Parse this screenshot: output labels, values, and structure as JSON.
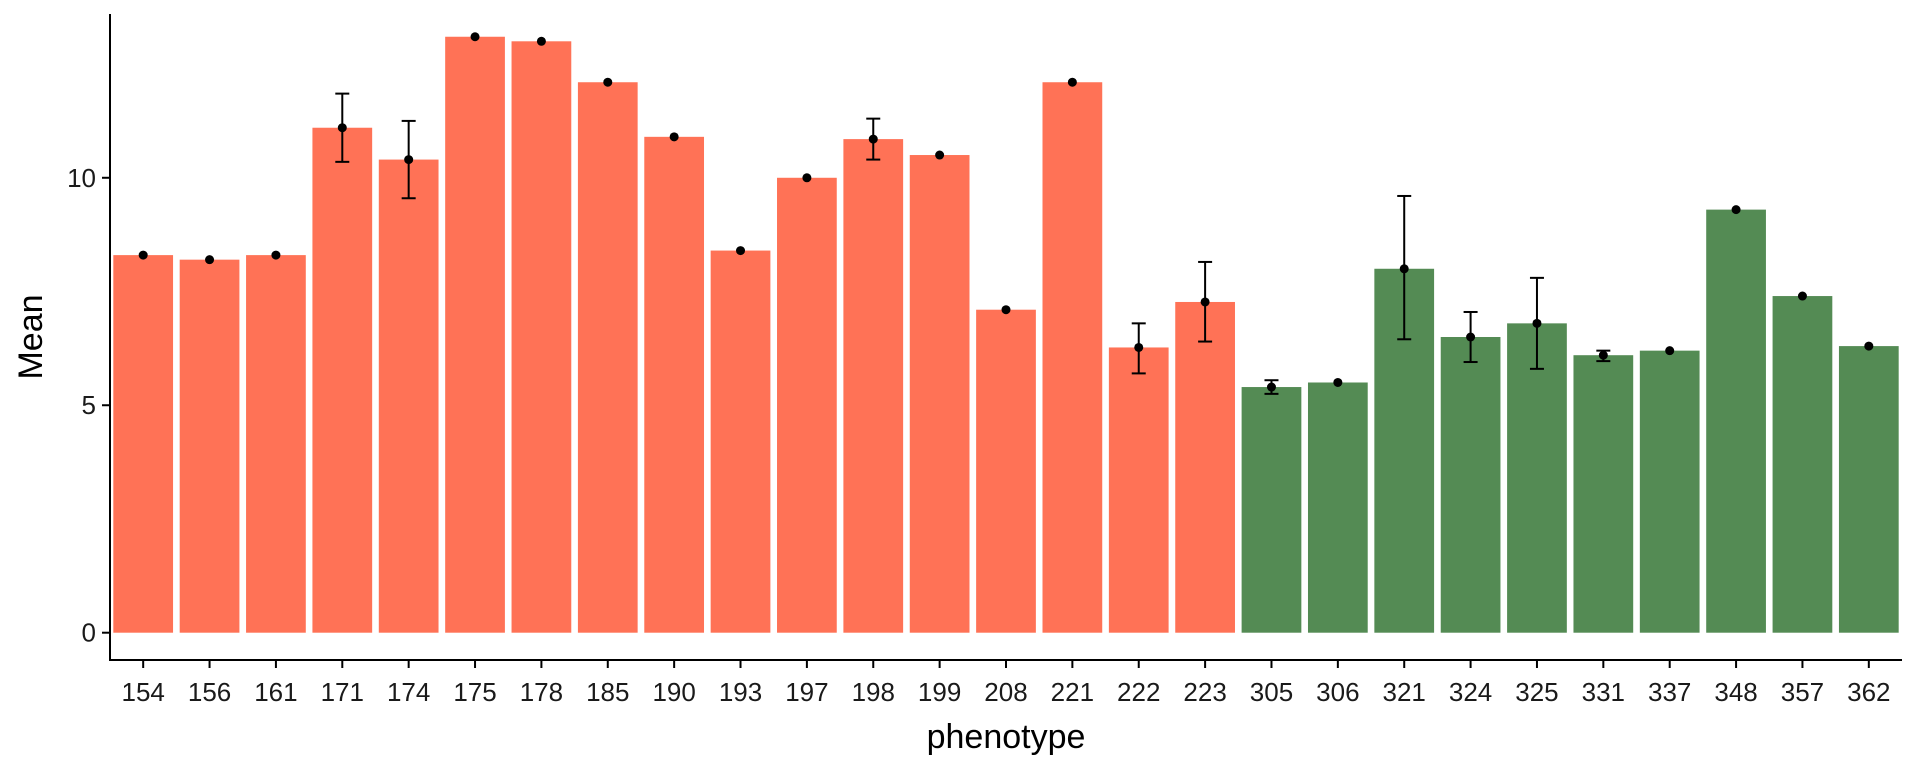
{
  "chart_data": {
    "type": "bar",
    "xlabel": "phenotype",
    "ylabel": "Mean",
    "ylim": [
      -0.6,
      13.6
    ],
    "yticks": [
      0,
      5,
      10
    ],
    "grid": false,
    "legend": "none",
    "categories": [
      "154",
      "156",
      "161",
      "171",
      "174",
      "175",
      "178",
      "185",
      "190",
      "193",
      "197",
      "198",
      "199",
      "208",
      "221",
      "222",
      "223",
      "305",
      "306",
      "321",
      "324",
      "325",
      "331",
      "337",
      "348",
      "357",
      "362"
    ],
    "values": [
      8.3,
      8.2,
      8.3,
      11.1,
      10.4,
      13.1,
      13.0,
      12.1,
      10.9,
      8.4,
      10.0,
      10.85,
      10.5,
      7.1,
      12.1,
      6.27,
      7.27,
      5.4,
      5.5,
      8.0,
      6.5,
      6.8,
      6.1,
      6.2,
      9.3,
      7.4,
      6.3
    ],
    "error_low": [
      null,
      null,
      null,
      10.35,
      9.55,
      null,
      null,
      null,
      null,
      null,
      null,
      10.4,
      null,
      null,
      null,
      5.7,
      6.4,
      5.25,
      null,
      6.45,
      5.95,
      5.8,
      5.97,
      null,
      null,
      null,
      null
    ],
    "error_high": [
      null,
      null,
      null,
      11.85,
      11.25,
      null,
      null,
      null,
      null,
      null,
      null,
      11.3,
      null,
      null,
      null,
      6.8,
      8.15,
      5.55,
      null,
      9.6,
      7.05,
      7.8,
      6.2,
      null,
      null,
      null,
      null
    ],
    "groups": [
      "A",
      "A",
      "A",
      "A",
      "A",
      "A",
      "A",
      "A",
      "A",
      "A",
      "A",
      "A",
      "A",
      "A",
      "A",
      "A",
      "A",
      "B",
      "B",
      "B",
      "B",
      "B",
      "B",
      "B",
      "B",
      "B",
      "B"
    ],
    "colors": {
      "A": "#ff7256",
      "B": "#548b54",
      "point": "#000000",
      "axis": "#000000"
    }
  }
}
